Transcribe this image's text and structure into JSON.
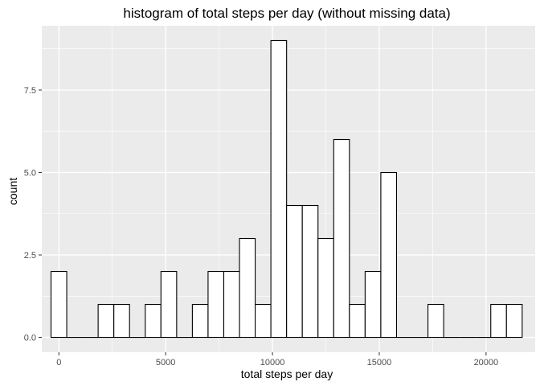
{
  "chart_data": {
    "type": "histogram",
    "title": "histogram of total steps per day (without missing data)",
    "xlabel": "total steps per day",
    "ylabel": "count",
    "xlim": [
      -800,
      22300
    ],
    "ylim": [
      -0.45,
      9.45
    ],
    "x_ticks": [
      0,
      5000,
      10000,
      15000,
      20000
    ],
    "x_tick_labels": [
      "0",
      "5000",
      "10000",
      "15000",
      "20000"
    ],
    "y_ticks": [
      0,
      2.5,
      5,
      7.5
    ],
    "y_tick_labels": [
      "0.0",
      "2.5",
      "5.0",
      "7.5"
    ],
    "bin_width": 735.3,
    "bin_centers": [
      0,
      735.3,
      1470.6,
      2205.9,
      2941.2,
      3676.5,
      4411.8,
      5147.1,
      5882.4,
      6617.7,
      7353.0,
      8088.3,
      8823.6,
      9558.9,
      10294.2,
      11029.5,
      11764.8,
      12500.1,
      13235.4,
      13970.7,
      14706.0,
      15441.3,
      16176.6,
      16911.9,
      17647.2,
      18382.5,
      19117.8,
      19853.1,
      20588.4,
      21323.7
    ],
    "counts": [
      2,
      0,
      0,
      1,
      1,
      0,
      1,
      2,
      0,
      1,
      2,
      2,
      3,
      1,
      9,
      4,
      4,
      3,
      6,
      1,
      2,
      5,
      0,
      0,
      1,
      0,
      0,
      0,
      1,
      1
    ],
    "bar_fill": "#ffffff",
    "bar_outline": "#000000",
    "panel_background": "#ebebeb",
    "grid": true,
    "grid_color": "#ffffff"
  }
}
